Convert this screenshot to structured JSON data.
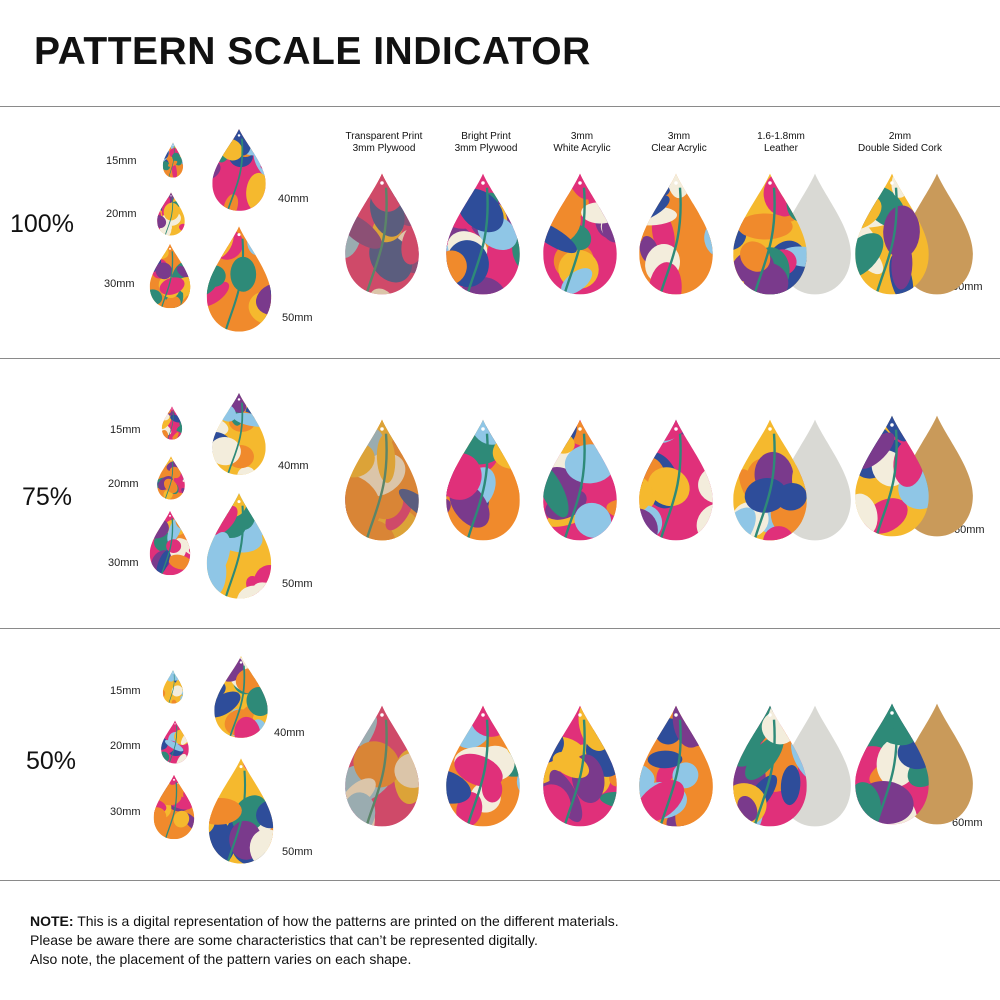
{
  "title": "PATTERN SCALE INDICATOR",
  "materials": [
    {
      "line1": "Transparent Print",
      "line2": "3mm Plywood"
    },
    {
      "line1": "Bright Print",
      "line2": "3mm Plywood"
    },
    {
      "line1": "3mm",
      "line2": "White Acrylic"
    },
    {
      "line1": "3mm",
      "line2": "Clear Acrylic"
    },
    {
      "line1": "1.6-1.8mm",
      "line2": "Leather"
    },
    {
      "line1": "2mm",
      "line2": "Double Sided Cork"
    }
  ],
  "sections": [
    {
      "scale": "100%",
      "sizes": [
        "15mm",
        "20mm",
        "30mm",
        "40mm",
        "50mm"
      ],
      "large_size": "60mm"
    },
    {
      "scale": "75%",
      "sizes": [
        "15mm",
        "20mm",
        "30mm",
        "40mm",
        "50mm"
      ],
      "large_size": "60mm"
    },
    {
      "scale": "50%",
      "sizes": [
        "15mm",
        "20mm",
        "30mm",
        "40mm",
        "50mm"
      ],
      "large_size": "60mm"
    }
  ],
  "note": {
    "label": "NOTE:",
    "line1": " This is a digital representation of how the patterns are printed on the different materials.",
    "line2": "Please be aware there are some characteristics that can’t be represented digitally.",
    "line3": "Also note, the placement of the pattern varies on each shape."
  },
  "colors": {
    "pink": "#e0307a",
    "orange": "#f08a2c",
    "yellow": "#f5b92e",
    "teal": "#2e8a78",
    "lightblue": "#8fc6e6",
    "navy": "#2e4d9a",
    "purple": "#7a3a8c",
    "cream": "#f3eddc",
    "leatherback": "#d9d9d4",
    "corkback": "#c99a5a"
  }
}
